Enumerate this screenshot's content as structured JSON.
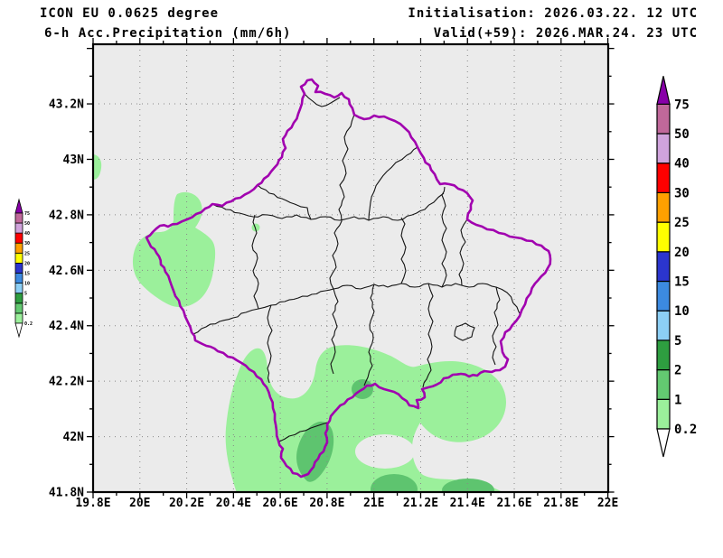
{
  "header": {
    "model": "ICON EU 0.0625 degree",
    "product": "6-h Acc.Precipitation (mm/6h)",
    "init": "Initialisation: 2026.03.22. 12 UTC",
    "valid": "Valid(+59): 2026.MAR.24. 23 UTC"
  },
  "map": {
    "x_ticks": [
      {
        "label": "19.8E",
        "lon": 19.8
      },
      {
        "label": "20E",
        "lon": 20.0
      },
      {
        "label": "20.2E",
        "lon": 20.2
      },
      {
        "label": "20.4E",
        "lon": 20.4
      },
      {
        "label": "20.6E",
        "lon": 20.6
      },
      {
        "label": "20.8E",
        "lon": 20.8
      },
      {
        "label": "21E",
        "lon": 21.0
      },
      {
        "label": "21.2E",
        "lon": 21.2
      },
      {
        "label": "21.4E",
        "lon": 21.4
      },
      {
        "label": "21.6E",
        "lon": 21.6
      },
      {
        "label": "21.8E",
        "lon": 21.8
      },
      {
        "label": "22E",
        "lon": 22.0
      }
    ],
    "y_ticks": [
      {
        "label": "41.8N",
        "lat": 41.8
      },
      {
        "label": "42N",
        "lat": 42.0
      },
      {
        "label": "42.2N",
        "lat": 42.2
      },
      {
        "label": "42.4N",
        "lat": 42.4
      },
      {
        "label": "42.6N",
        "lat": 42.6
      },
      {
        "label": "42.8N",
        "lat": 42.8
      },
      {
        "label": "43N",
        "lat": 43.0
      },
      {
        "label": "43.2N",
        "lat": 43.2
      }
    ]
  },
  "colorbar": {
    "levels": [
      "0.2",
      "1",
      "2",
      "5",
      "10",
      "15",
      "20",
      "25",
      "30",
      "40",
      "50",
      "75"
    ],
    "segment_colors": [
      "#9BF09B",
      "#63C971",
      "#2E9E40",
      "#8CCFF5",
      "#3C8AE0",
      "#2B35CE",
      "#FFFF00",
      "#FFA000",
      "#FF0000",
      "#D0A3DC",
      "#C0689A"
    ],
    "overflow_color": "#8800A8",
    "underflow_color": "#FFFFFF"
  },
  "colors": {
    "map_background": "#EBEBEB",
    "country_border": "#A100AF",
    "district_border": "#141414",
    "grid_dots": "#888888",
    "precip_light": "#9BF09B",
    "precip_moderate": "#5EC46F",
    "frame": "#000000"
  }
}
